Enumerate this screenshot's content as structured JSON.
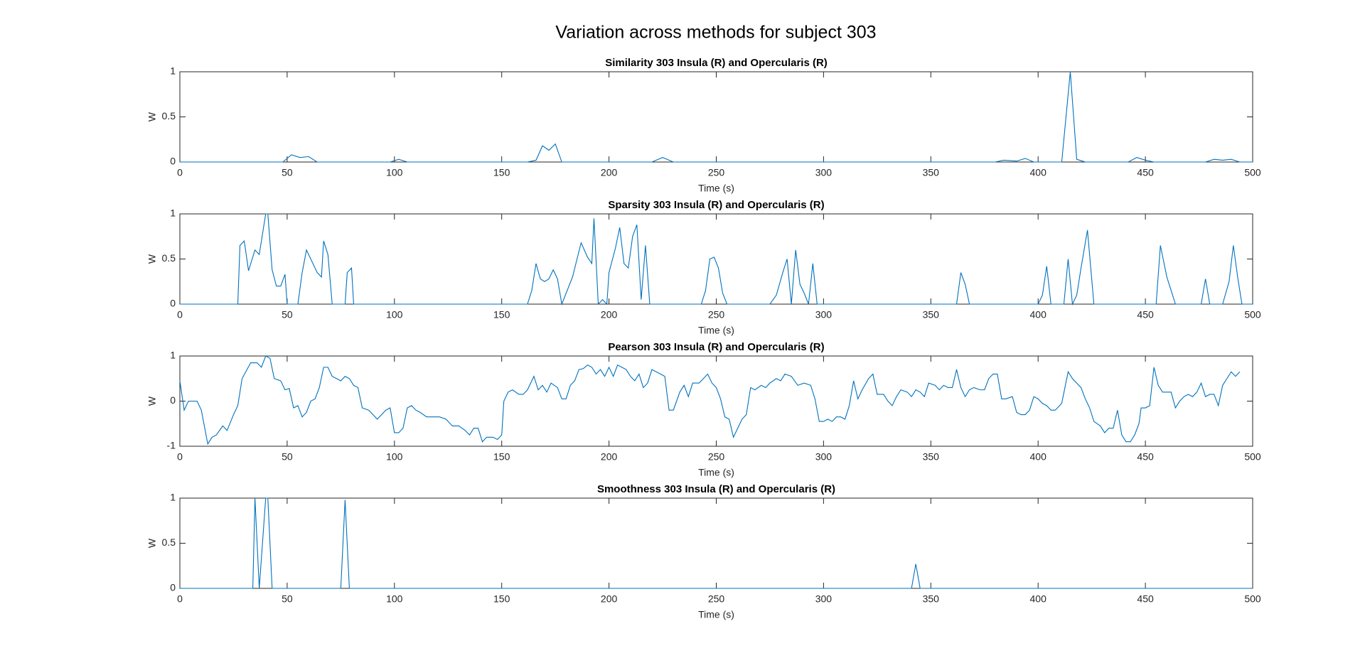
{
  "title": "Variation across methods for subject 303",
  "chart_data": [
    {
      "type": "line",
      "title": "Similarity 303 Insula (R) and Opercularis (R)",
      "xlabel": "Time (s)",
      "ylabel": "W",
      "color": "#0072bd",
      "x": [
        0,
        48,
        52,
        56,
        60,
        64,
        98,
        102,
        106,
        162,
        166,
        169,
        172,
        175,
        178,
        220,
        225,
        230,
        380,
        384,
        390,
        394,
        398,
        411,
        415,
        418,
        422,
        442,
        446,
        450,
        454,
        478,
        482,
        486,
        490,
        494,
        500
      ],
      "values": [
        0,
        0,
        0.08,
        0.05,
        0.06,
        0,
        0,
        0.03,
        0,
        0,
        0.02,
        0.18,
        0.13,
        0.2,
        0,
        0,
        0.05,
        0,
        0,
        0.02,
        0.01,
        0.04,
        0,
        0,
        1,
        0.03,
        0,
        0,
        0.05,
        0.02,
        0,
        0,
        0.03,
        0.02,
        0.03,
        0,
        0
      ],
      "xlim": [
        0,
        500
      ],
      "ylim": [
        0,
        1
      ],
      "xticks": [
        0,
        50,
        100,
        150,
        200,
        250,
        300,
        350,
        400,
        450,
        500
      ],
      "yticks": [
        0,
        0.5,
        1
      ]
    },
    {
      "type": "line",
      "title": "Sparsity 303 Insula (R) and Opercularis (R)",
      "xlabel": "Time (s)",
      "ylabel": "W",
      "color": "#0072bd",
      "x": [
        0,
        27,
        28,
        30,
        32,
        35,
        37,
        40,
        41,
        43,
        45,
        47,
        49,
        50,
        55,
        57,
        59,
        62,
        64,
        66,
        67,
        69,
        71,
        77,
        78,
        80,
        81,
        162,
        164,
        166,
        168,
        170,
        172,
        174,
        176,
        178,
        183,
        187,
        190,
        192,
        193,
        195,
        197,
        199,
        200,
        203,
        205,
        207,
        209,
        211,
        213,
        215,
        217,
        219,
        243,
        245,
        247,
        249,
        251,
        253,
        255,
        275,
        278,
        281,
        283,
        285,
        287,
        289,
        291,
        293,
        295,
        297,
        362,
        364,
        366,
        368,
        400,
        402,
        404,
        406,
        412,
        414,
        416,
        418,
        420,
        423,
        426,
        455,
        457,
        460,
        462,
        464,
        476,
        478,
        480,
        486,
        489,
        491,
        493,
        495,
        500
      ],
      "values": [
        0,
        0,
        0.65,
        0.7,
        0.37,
        0.6,
        0.55,
        1,
        1,
        0.38,
        0.2,
        0.2,
        0.33,
        0,
        0,
        0.35,
        0.6,
        0.45,
        0.35,
        0.3,
        0.7,
        0.55,
        0,
        0,
        0.35,
        0.4,
        0,
        0,
        0.15,
        0.45,
        0.28,
        0.25,
        0.28,
        0.38,
        0.28,
        0,
        0.3,
        0.68,
        0.52,
        0.45,
        0.95,
        0,
        0.05,
        0,
        0.35,
        0.62,
        0.85,
        0.45,
        0.4,
        0.75,
        0.88,
        0.05,
        0.65,
        0,
        0,
        0.15,
        0.5,
        0.52,
        0.4,
        0.12,
        0,
        0,
        0.1,
        0.35,
        0.5,
        0,
        0.6,
        0.22,
        0.12,
        0,
        0.45,
        0,
        0,
        0.35,
        0.22,
        0,
        0,
        0.1,
        0.42,
        0,
        0,
        0.5,
        0,
        0.1,
        0.4,
        0.82,
        0,
        0,
        0.65,
        0.3,
        0.15,
        0,
        0,
        0.28,
        0,
        0,
        0.25,
        0.65,
        0.3,
        0,
        0
      ],
      "xlim": [
        0,
        500
      ],
      "ylim": [
        0,
        1
      ],
      "xticks": [
        0,
        50,
        100,
        150,
        200,
        250,
        300,
        350,
        400,
        450,
        500
      ],
      "yticks": [
        0,
        0.5,
        1
      ]
    },
    {
      "type": "line",
      "title": "Pearson 303 Insula (R) and Opercularis (R)",
      "xlabel": "Time (s)",
      "ylabel": "W",
      "color": "#0072bd",
      "x": [
        0,
        2,
        4,
        8,
        10,
        13,
        15,
        17,
        20,
        22,
        25,
        27,
        29,
        33,
        36,
        38,
        40,
        42,
        44,
        47,
        49,
        51,
        53,
        55,
        57,
        59,
        61,
        63,
        65,
        67,
        69,
        71,
        73,
        75,
        77,
        79,
        81,
        83,
        85,
        88,
        90,
        92,
        94,
        96,
        98,
        100,
        102,
        104,
        106,
        108,
        110,
        112,
        115,
        118,
        121,
        124,
        127,
        130,
        133,
        135,
        137,
        139,
        141,
        143,
        146,
        148,
        150,
        151,
        153,
        155,
        158,
        160,
        162,
        165,
        167,
        169,
        171,
        173,
        176,
        178,
        180,
        182,
        184,
        186,
        188,
        190,
        192,
        194,
        196,
        198,
        200,
        202,
        204,
        206,
        208,
        210,
        212,
        214,
        216,
        218,
        220,
        222,
        224,
        226,
        228,
        230,
        233,
        235,
        237,
        239,
        242,
        244,
        246,
        248,
        250,
        252,
        254,
        256,
        258,
        260,
        262,
        264,
        266,
        268,
        271,
        273,
        275,
        278,
        280,
        282,
        285,
        288,
        291,
        294,
        296,
        298,
        300,
        302,
        304,
        306,
        308,
        310,
        312,
        314,
        316,
        318,
        321,
        323,
        325,
        328,
        330,
        332,
        334,
        336,
        339,
        341,
        343,
        345,
        347,
        349,
        352,
        354,
        356,
        358,
        360,
        362,
        364,
        366,
        368,
        370,
        373,
        375,
        377,
        379,
        381,
        383,
        385,
        388,
        390,
        392,
        394,
        396,
        398,
        400,
        402,
        404,
        406,
        408,
        411,
        414,
        416,
        418,
        420,
        422,
        424,
        426,
        429,
        431,
        433,
        435,
        437,
        439,
        441,
        443,
        445,
        447,
        448,
        450,
        452,
        454,
        456,
        458,
        460,
        462,
        464,
        466,
        468,
        470,
        472,
        474,
        476,
        478,
        480,
        482,
        484,
        486,
        488,
        490,
        492,
        494
      ],
      "values": [
        0.45,
        -0.2,
        0,
        0,
        -0.2,
        -0.95,
        -0.8,
        -0.75,
        -0.55,
        -0.65,
        -0.3,
        -0.1,
        0.5,
        0.85,
        0.85,
        0.75,
        1,
        0.95,
        0.5,
        0.45,
        0.25,
        0.28,
        -0.15,
        -0.1,
        -0.35,
        -0.25,
        0,
        0.05,
        0.3,
        0.75,
        0.75,
        0.55,
        0.5,
        0.45,
        0.55,
        0.5,
        0.35,
        0.3,
        -0.15,
        -0.2,
        -0.3,
        -0.4,
        -0.3,
        -0.2,
        -0.15,
        -0.7,
        -0.7,
        -0.6,
        -0.15,
        -0.1,
        -0.2,
        -0.25,
        -0.35,
        -0.35,
        -0.35,
        -0.4,
        -0.55,
        -0.55,
        -0.65,
        -0.75,
        -0.6,
        -0.6,
        -0.9,
        -0.8,
        -0.8,
        -0.85,
        -0.75,
        0,
        0.2,
        0.25,
        0.15,
        0.15,
        0.25,
        0.55,
        0.25,
        0.35,
        0.2,
        0.4,
        0.3,
        0.05,
        0.05,
        0.35,
        0.45,
        0.7,
        0.72,
        0.8,
        0.75,
        0.6,
        0.7,
        0.55,
        0.75,
        0.55,
        0.8,
        0.75,
        0.7,
        0.55,
        0.45,
        0.6,
        0.3,
        0.4,
        0.7,
        0.65,
        0.6,
        0.55,
        -0.2,
        -0.2,
        0.2,
        0.35,
        0.1,
        0.4,
        0.4,
        0.5,
        0.6,
        0.4,
        0.3,
        0.05,
        -0.35,
        -0.4,
        -0.8,
        -0.6,
        -0.4,
        -0.3,
        0.3,
        0.25,
        0.35,
        0.3,
        0.4,
        0.5,
        0.45,
        0.6,
        0.55,
        0.35,
        0.4,
        0.35,
        0.05,
        -0.45,
        -0.45,
        -0.4,
        -0.45,
        -0.35,
        -0.35,
        -0.4,
        -0.1,
        0.45,
        0.05,
        0.25,
        0.5,
        0.6,
        0.15,
        0.15,
        0,
        -0.1,
        0.1,
        0.25,
        0.2,
        0.1,
        0.25,
        0.2,
        0.1,
        0.4,
        0.35,
        0.25,
        0.35,
        0.3,
        0.3,
        0.7,
        0.3,
        0.1,
        0.25,
        0.3,
        0.25,
        0.25,
        0.5,
        0.6,
        0.6,
        0.05,
        0.05,
        0.1,
        -0.25,
        -0.3,
        -0.3,
        -0.2,
        0.1,
        0.05,
        -0.05,
        -0.1,
        -0.2,
        -0.2,
        -0.05,
        0.65,
        0.5,
        0.4,
        0.3,
        0.05,
        -0.15,
        -0.45,
        -0.55,
        -0.7,
        -0.6,
        -0.6,
        -0.2,
        -0.75,
        -0.9,
        -0.9,
        -0.75,
        -0.5,
        -0.15,
        -0.15,
        -0.1,
        0.75,
        0.35,
        0.2,
        0.2,
        0.2,
        -0.15,
        0,
        0.1,
        0.15,
        0.1,
        0.2,
        0.4,
        0.1,
        0.15,
        0.15,
        -0.1,
        0.35,
        0.5,
        0.65,
        0.55,
        0.65
      ],
      "xlim": [
        0,
        500
      ],
      "ylim": [
        -1,
        1
      ],
      "xticks": [
        0,
        50,
        100,
        150,
        200,
        250,
        300,
        350,
        400,
        450,
        500
      ],
      "yticks": [
        -1,
        0,
        1
      ]
    },
    {
      "type": "line",
      "title": "Smoothness 303 Insula (R) and Opercularis (R)",
      "xlabel": "Time (s)",
      "ylabel": "W",
      "color": "#0072bd",
      "x": [
        0,
        34,
        35,
        37,
        40,
        41,
        43,
        75,
        77,
        79,
        341,
        343,
        345,
        500
      ],
      "values": [
        0,
        0,
        1,
        0,
        1,
        1,
        0,
        0,
        0.98,
        0,
        0,
        0.27,
        0,
        0
      ],
      "xlim": [
        0,
        500
      ],
      "ylim": [
        0,
        1
      ],
      "xticks": [
        0,
        50,
        100,
        150,
        200,
        250,
        300,
        350,
        400,
        450,
        500
      ],
      "yticks": [
        0,
        0.5,
        1
      ]
    }
  ]
}
